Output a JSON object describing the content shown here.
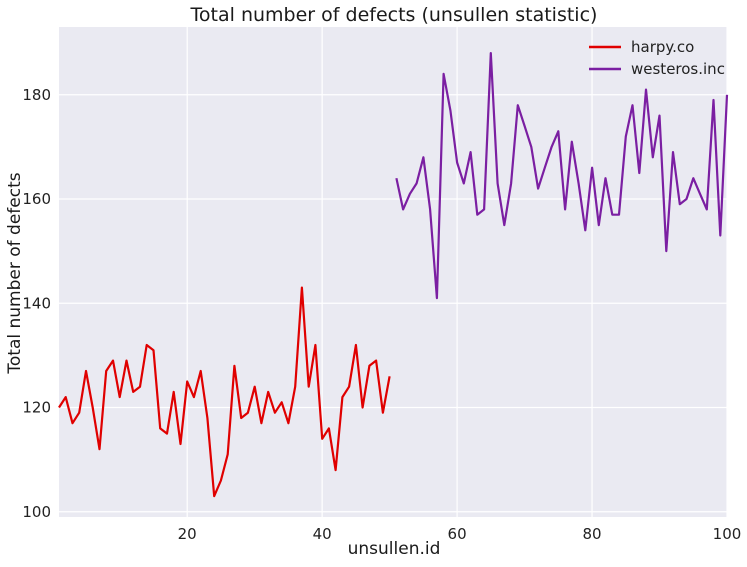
{
  "chart_data": {
    "type": "line",
    "title": "Total number of defects (unsullen statistic)",
    "xlabel": "unsullen.id",
    "ylabel": "Total number of defects",
    "xlim": [
      1,
      100
    ],
    "ylim": [
      99,
      193
    ],
    "xticks": [
      20,
      40,
      60,
      80,
      100
    ],
    "yticks": [
      100,
      120,
      140,
      160,
      180
    ],
    "grid": true,
    "legend_position": "top-right",
    "series": [
      {
        "name": "harpy.co",
        "color": "#e00000",
        "x": [
          1,
          2,
          3,
          4,
          5,
          6,
          7,
          8,
          9,
          10,
          11,
          12,
          13,
          14,
          15,
          16,
          17,
          18,
          19,
          20,
          21,
          22,
          23,
          24,
          25,
          26,
          27,
          28,
          29,
          30,
          31,
          32,
          33,
          34,
          35,
          36,
          37,
          38,
          39,
          40,
          41,
          42,
          43,
          44,
          45,
          46,
          47,
          48,
          49,
          50
        ],
        "y": [
          120,
          122,
          117,
          119,
          127,
          120,
          112,
          127,
          129,
          122,
          129,
          123,
          124,
          132,
          131,
          116,
          115,
          123,
          113,
          125,
          122,
          127,
          118,
          103,
          106,
          111,
          128,
          118,
          119,
          124,
          117,
          123,
          119,
          121,
          117,
          124,
          143,
          124,
          132,
          114,
          116,
          108,
          122,
          124,
          132,
          120,
          128,
          129,
          119,
          126
        ]
      },
      {
        "name": "westeros.inc",
        "color": "#7b1fa2",
        "x": [
          51,
          52,
          53,
          54,
          55,
          56,
          57,
          58,
          59,
          60,
          61,
          62,
          63,
          64,
          65,
          66,
          67,
          68,
          69,
          70,
          71,
          72,
          73,
          74,
          75,
          76,
          77,
          78,
          79,
          80,
          81,
          82,
          83,
          84,
          85,
          86,
          87,
          88,
          89,
          90,
          91,
          92,
          93,
          94,
          95,
          96,
          97,
          98,
          99,
          100
        ],
        "y": [
          164,
          158,
          161,
          163,
          168,
          158,
          141,
          184,
          177,
          167,
          163,
          169,
          157,
          158,
          188,
          163,
          155,
          163,
          178,
          174,
          170,
          162,
          166,
          170,
          173,
          158,
          171,
          163,
          154,
          166,
          155,
          164,
          157,
          157,
          172,
          178,
          165,
          181,
          168,
          176,
          150,
          169,
          159,
          160,
          164,
          161,
          158,
          179,
          153,
          180
        ]
      }
    ]
  }
}
